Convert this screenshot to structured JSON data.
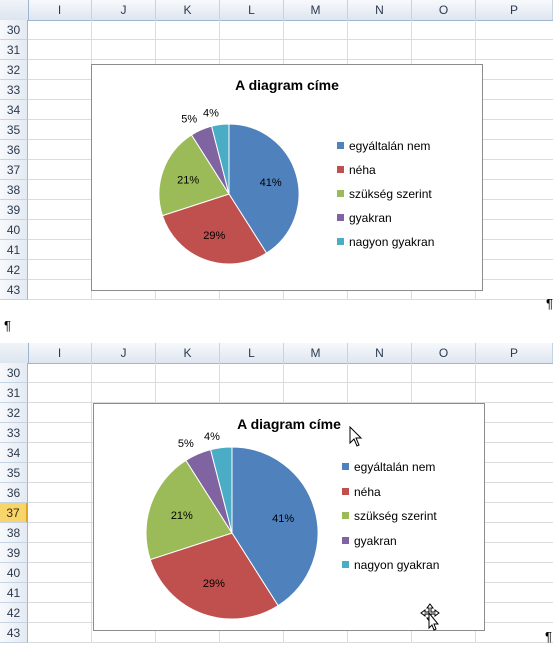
{
  "columns": [
    "I",
    "J",
    "K",
    "L",
    "M",
    "N",
    "O",
    "P"
  ],
  "rows": [
    "30",
    "31",
    "32",
    "33",
    "34",
    "35",
    "36",
    "37",
    "38",
    "39",
    "40",
    "41",
    "42",
    "43"
  ],
  "pilcrow": "¶",
  "top_panel": {
    "active_row": ""
  },
  "bottom_panel": {
    "active_row": "37"
  },
  "chart_data": [
    {
      "type": "pie",
      "title": "A diagram címe",
      "categories": [
        "egyáltalán nem",
        "néha",
        "szükség szerint",
        "gyakran",
        "nagyon gyakran"
      ],
      "values": [
        41,
        29,
        21,
        5,
        4
      ],
      "labels": [
        "41%",
        "29%",
        "21%",
        "5%",
        "4%"
      ],
      "colors": [
        "#4f81bd",
        "#c0504d",
        "#9bbb59",
        "#8064a2",
        "#4bacc6"
      ],
      "legend": "right"
    },
    {
      "type": "pie",
      "title": "A diagram címe",
      "categories": [
        "egyáltalán nem",
        "néha",
        "szükség szerint",
        "gyakran",
        "nagyon gyakran"
      ],
      "values": [
        41,
        29,
        21,
        5,
        4
      ],
      "labels": [
        "41%",
        "29%",
        "21%",
        "5%",
        "4%"
      ],
      "colors": [
        "#4f81bd",
        "#c0504d",
        "#9bbb59",
        "#8064a2",
        "#4bacc6"
      ],
      "legend": "right"
    }
  ],
  "icons": {
    "mouse_cursor": "arrow-pointer-icon",
    "move_cursor": "move-cursor-icon"
  }
}
